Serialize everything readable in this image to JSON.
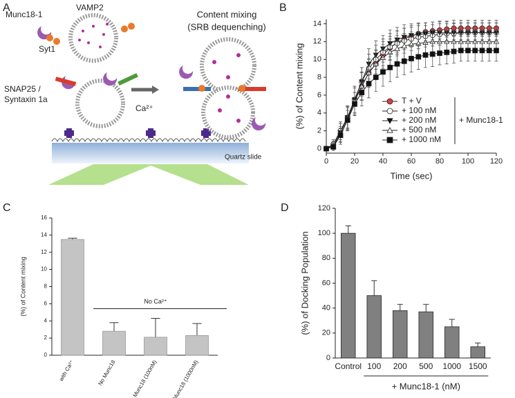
{
  "diagram": {
    "label": "A",
    "munc18": "Munc18-1",
    "vamp2": "VAMP2",
    "syt1": "Syt1",
    "snap25": "SNAP25 /",
    "syntaxin": "Syntaxin 1a",
    "content_title": "Content mixing",
    "content_subtitle": "(SRB dequenching)",
    "calcium": "Ca²⁺",
    "slide": "Quartz slide"
  },
  "chart_data": [
    {
      "type": "line",
      "label": "B",
      "xlabel": "Time (sec)",
      "ylabel": "(%) of Content mixing",
      "x": [
        0,
        5,
        10,
        15,
        20,
        25,
        30,
        35,
        40,
        45,
        50,
        55,
        60,
        65,
        70,
        75,
        80,
        85,
        90,
        95,
        100,
        105,
        110,
        115,
        120
      ],
      "xlim": [
        0,
        120
      ],
      "xticks": [
        0,
        20,
        40,
        60,
        80,
        100,
        120
      ],
      "ylim": [
        -0.5,
        14.5
      ],
      "yticks": [
        0,
        2,
        4,
        6,
        8,
        10,
        12,
        14
      ],
      "legend": "lower right",
      "annotation": "+ Munc18-1",
      "series": [
        {
          "name": "T + V",
          "color": "#222222",
          "fill": "#e0393e",
          "marker": "circle",
          "values": [
            0,
            0.5,
            2,
            3.5,
            5.5,
            7,
            8.5,
            9.5,
            10.5,
            11.3,
            11.9,
            12.3,
            12.6,
            12.9,
            13.1,
            13.2,
            13.3,
            13.4,
            13.5,
            13.5,
            13.5,
            13.5,
            13.5,
            13.5,
            13.5
          ],
          "errors": [
            0,
            0.5,
            1,
            1.3,
            1.5,
            1.5,
            1.5,
            1.5,
            1.5,
            1.3,
            1.3,
            1.2,
            1.2,
            1.1,
            1,
            1,
            1,
            0.9,
            0.9,
            0.9,
            0.9,
            0.9,
            0.9,
            0.9,
            0.9
          ]
        },
        {
          "name": "+ 100 nM",
          "color": "#222222",
          "fill": "#ffffff",
          "marker": "circle",
          "values": [
            0,
            0.5,
            2,
            3.5,
            5.5,
            7.5,
            9,
            10,
            10.8,
            11.4,
            11.8,
            12.1,
            12.3,
            12.5,
            12.6,
            12.7,
            12.8,
            12.9,
            12.9,
            13,
            13,
            13,
            13,
            13,
            13
          ],
          "errors": [
            0,
            0.5,
            1,
            1.3,
            1.5,
            1.6,
            1.6,
            1.6,
            1.5,
            1.5,
            1.4,
            1.4,
            1.3,
            1.3,
            1.2,
            1.2,
            1.2,
            1.1,
            1.1,
            1.1,
            1.1,
            1.1,
            1.1,
            1.1,
            1.1
          ]
        },
        {
          "name": "+ 200 nM",
          "color": "#222222",
          "fill": "#111111",
          "marker": "triangle-down",
          "values": [
            0,
            0.3,
            1.8,
            3.5,
            5.5,
            7.5,
            9.5,
            10.5,
            11.2,
            11.8,
            12.2,
            12.5,
            12.7,
            12.8,
            12.9,
            13,
            13,
            13,
            13,
            13,
            13,
            13,
            13,
            13,
            13
          ],
          "errors": [
            0,
            0.5,
            1,
            1.2,
            1.5,
            1.6,
            1.7,
            1.6,
            1.5,
            1.5,
            1.4,
            1.4,
            1.3,
            1.3,
            1.2,
            1.2,
            1.2,
            1.2,
            1.1,
            1.1,
            1.1,
            1.1,
            1.1,
            1.1,
            1.1
          ]
        },
        {
          "name": "+ 500 nM",
          "color": "#222222",
          "fill": "#ffffff",
          "marker": "triangle-up",
          "values": [
            0,
            0.3,
            1.5,
            3.3,
            5.3,
            7,
            8.5,
            9.5,
            10.2,
            10.8,
            11.2,
            11.5,
            11.7,
            11.8,
            11.9,
            12,
            12,
            12,
            12,
            12,
            12,
            12,
            12,
            12,
            12
          ],
          "errors": [
            0,
            0.5,
            1,
            1.3,
            1.5,
            1.6,
            1.6,
            1.6,
            1.5,
            1.5,
            1.5,
            1.4,
            1.4,
            1.3,
            1.3,
            1.3,
            1.2,
            1.2,
            1.2,
            1.2,
            1.2,
            1.2,
            1.2,
            1.2,
            1.2
          ]
        },
        {
          "name": "+ 1000 nM",
          "color": "#222222",
          "fill": "#111111",
          "marker": "square",
          "values": [
            0,
            0.2,
            1.5,
            3.2,
            5,
            6.3,
            7.3,
            8,
            8.6,
            9.1,
            9.5,
            9.8,
            10.1,
            10.3,
            10.5,
            10.6,
            10.7,
            10.8,
            10.9,
            11,
            11,
            11,
            11,
            11,
            11
          ],
          "errors": [
            0,
            0.4,
            0.8,
            1.1,
            1.3,
            1.5,
            1.6,
            1.6,
            1.6,
            1.6,
            1.5,
            1.5,
            1.5,
            1.4,
            1.4,
            1.4,
            1.3,
            1.3,
            1.3,
            1.2,
            1.2,
            1.2,
            1.2,
            1.2,
            1.2
          ]
        }
      ]
    },
    {
      "type": "bar",
      "label": "C",
      "ylabel": "(%) of Content mixing",
      "categories": [
        "with Ca²⁺",
        "No Munc18",
        "Munc18 (100nM)",
        "Munc18 (1000nM)"
      ],
      "values": [
        13.5,
        2.8,
        2.1,
        2.3
      ],
      "errors": [
        0.15,
        1.0,
        2.2,
        1.4
      ],
      "color": "#c4c4c4",
      "ylim": [
        0,
        16
      ],
      "yticks": [
        0,
        2,
        4,
        6,
        8,
        10,
        12,
        14,
        16
      ],
      "xtick_rotation": -60,
      "annotation": "No Ca²⁺"
    },
    {
      "type": "bar",
      "label": "D",
      "ylabel": "(%) of Docking Population",
      "xlabel": "+ Munc18-1 (nM)",
      "categories": [
        "Control",
        "100",
        "200",
        "500",
        "1000",
        "1500"
      ],
      "values": [
        100,
        50,
        38,
        37,
        25,
        9
      ],
      "errors": [
        6,
        12,
        5,
        6,
        6,
        3
      ],
      "color": "#808080",
      "ylim": [
        0,
        120
      ],
      "yticks": [
        0,
        20,
        40,
        60,
        80,
        100,
        120
      ]
    }
  ]
}
